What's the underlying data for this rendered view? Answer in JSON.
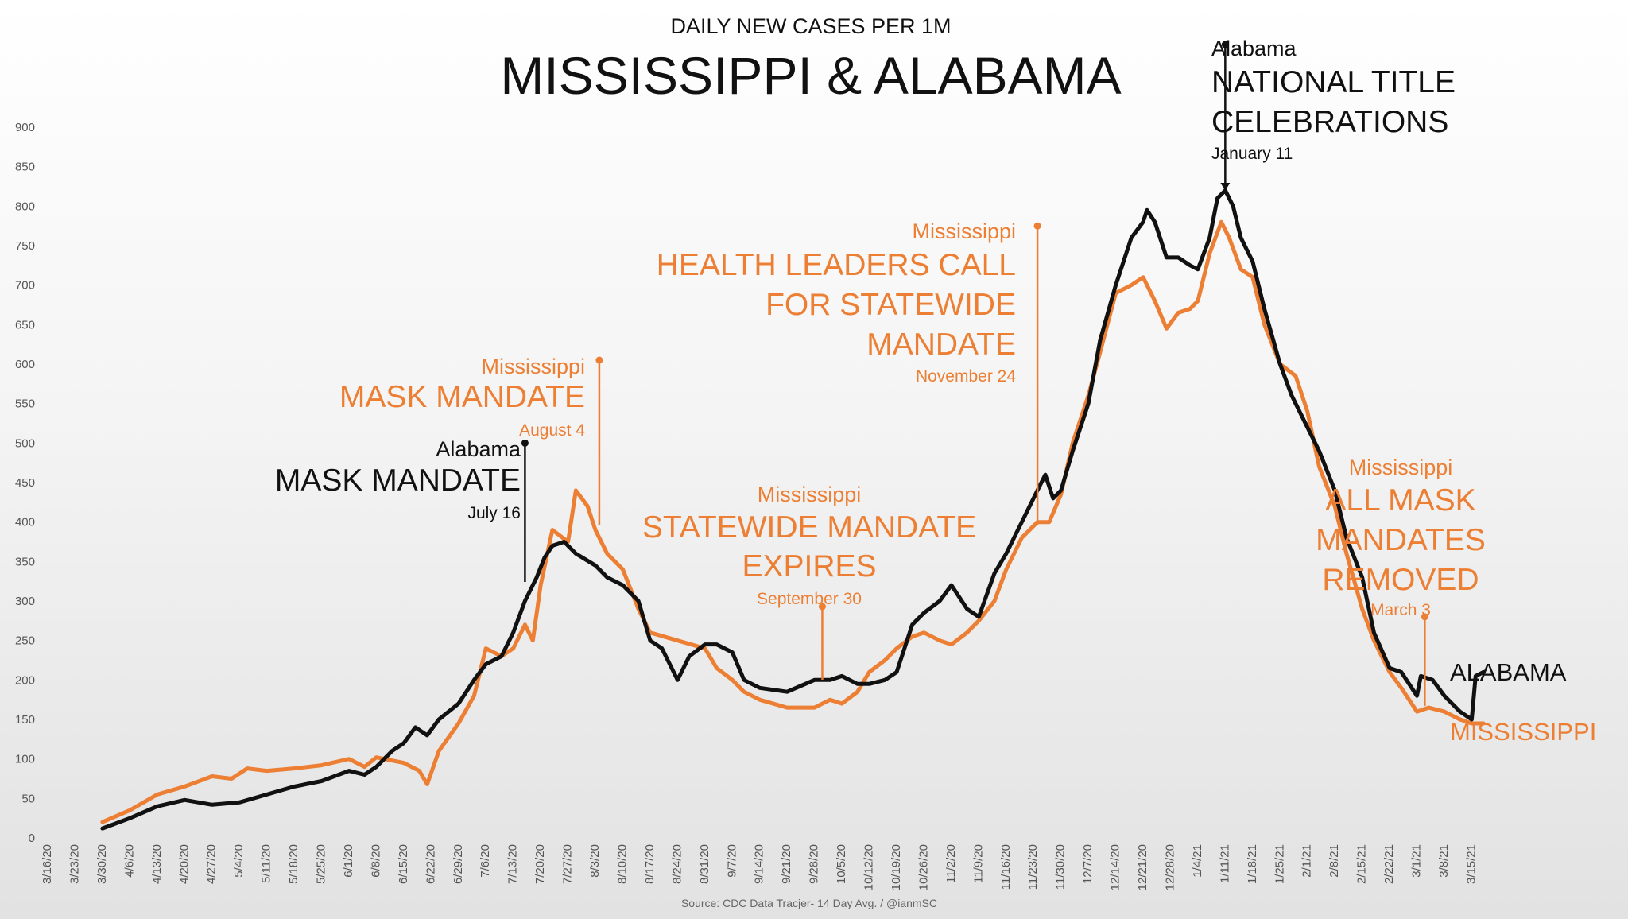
{
  "colors": {
    "alabama": "#111111",
    "mississippi": "#ec7f33",
    "axis": "#555555",
    "source": "#666666"
  },
  "chart_data": {
    "type": "line",
    "subtitle": "DAILY NEW CASES PER 1M",
    "title": "MISSISSIPPI & ALABAMA",
    "source": "Source: CDC Data Tracjer- 14 Day Avg. / @ianmSC",
    "ylim": [
      0,
      900
    ],
    "xlim": [
      "3/16/20",
      "3/24/21"
    ],
    "y_ticks": [
      0,
      50,
      100,
      150,
      200,
      250,
      300,
      350,
      400,
      450,
      500,
      550,
      600,
      650,
      700,
      750,
      800,
      850,
      900
    ],
    "x_ticks": [
      "3/16/20",
      "3/23/20",
      "3/30/20",
      "4/6/20",
      "4/13/20",
      "4/20/20",
      "4/27/20",
      "5/4/20",
      "5/11/20",
      "5/18/20",
      "5/25/20",
      "6/1/20",
      "6/8/20",
      "6/15/20",
      "6/22/20",
      "6/29/20",
      "7/6/20",
      "7/13/20",
      "7/20/20",
      "7/27/20",
      "8/3/20",
      "8/10/20",
      "8/17/20",
      "8/24/20",
      "8/31/20",
      "9/7/20",
      "9/14/20",
      "9/21/20",
      "9/28/20",
      "10/5/20",
      "10/12/20",
      "10/19/20",
      "10/26/20",
      "11/2/20",
      "11/9/20",
      "11/16/20",
      "11/23/20",
      "11/30/20",
      "12/7/20",
      "12/14/20",
      "12/21/20",
      "12/28/20",
      "1/4/21",
      "1/11/21",
      "1/18/21",
      "1/25/21",
      "2/1/21",
      "2/8/21",
      "2/15/21",
      "2/22/21",
      "3/1/21",
      "3/8/21",
      "3/15/21"
    ],
    "grid": false,
    "series": [
      {
        "name": "MISSISSIPPI",
        "points": [
          [
            "3/30/20",
            20
          ],
          [
            "4/6/20",
            35
          ],
          [
            "4/13/20",
            55
          ],
          [
            "4/20/20",
            65
          ],
          [
            "4/27/20",
            78
          ],
          [
            "5/2/20",
            75
          ],
          [
            "5/6/20",
            88
          ],
          [
            "5/11/20",
            85
          ],
          [
            "5/18/20",
            88
          ],
          [
            "5/25/20",
            92
          ],
          [
            "6/1/20",
            100
          ],
          [
            "6/5/20",
            90
          ],
          [
            "6/8/20",
            102
          ],
          [
            "6/15/20",
            95
          ],
          [
            "6/19/20",
            85
          ],
          [
            "6/21/20",
            68
          ],
          [
            "6/24/20",
            110
          ],
          [
            "6/29/20",
            145
          ],
          [
            "7/3/20",
            180
          ],
          [
            "7/6/20",
            240
          ],
          [
            "7/10/20",
            230
          ],
          [
            "7/13/20",
            240
          ],
          [
            "7/16/20",
            270
          ],
          [
            "7/18/20",
            250
          ],
          [
            "7/20/20",
            320
          ],
          [
            "7/23/20",
            390
          ],
          [
            "7/27/20",
            375
          ],
          [
            "7/29/20",
            440
          ],
          [
            "8/1/20",
            420
          ],
          [
            "8/3/20",
            390
          ],
          [
            "8/6/20",
            360
          ],
          [
            "8/10/20",
            340
          ],
          [
            "8/14/20",
            290
          ],
          [
            "8/17/20",
            260
          ],
          [
            "8/24/20",
            250
          ],
          [
            "8/31/20",
            240
          ],
          [
            "9/3/20",
            215
          ],
          [
            "9/7/20",
            200
          ],
          [
            "9/10/20",
            185
          ],
          [
            "9/14/20",
            175
          ],
          [
            "9/21/20",
            165
          ],
          [
            "9/28/20",
            165
          ],
          [
            "10/2/20",
            175
          ],
          [
            "10/5/20",
            170
          ],
          [
            "10/9/20",
            185
          ],
          [
            "10/12/20",
            210
          ],
          [
            "10/16/20",
            225
          ],
          [
            "10/19/20",
            240
          ],
          [
            "10/23/20",
            255
          ],
          [
            "10/26/20",
            260
          ],
          [
            "10/30/20",
            250
          ],
          [
            "11/2/20",
            245
          ],
          [
            "11/6/20",
            260
          ],
          [
            "11/9/20",
            275
          ],
          [
            "11/13/20",
            300
          ],
          [
            "11/16/20",
            340
          ],
          [
            "11/20/20",
            380
          ],
          [
            "11/24/20",
            400
          ],
          [
            "11/27/20",
            400
          ],
          [
            "11/30/20",
            435
          ],
          [
            "12/3/20",
            500
          ],
          [
            "12/7/20",
            560
          ],
          [
            "12/10/20",
            615
          ],
          [
            "12/14/20",
            690
          ],
          [
            "12/18/20",
            700
          ],
          [
            "12/21/20",
            710
          ],
          [
            "12/24/20",
            680
          ],
          [
            "12/27/20",
            645
          ],
          [
            "12/30/20",
            665
          ],
          [
            "1/2/21",
            670
          ],
          [
            "1/4/21",
            680
          ],
          [
            "1/7/21",
            740
          ],
          [
            "1/10/21",
            780
          ],
          [
            "1/12/21",
            760
          ],
          [
            "1/15/21",
            720
          ],
          [
            "1/18/21",
            710
          ],
          [
            "1/21/21",
            650
          ],
          [
            "1/25/21",
            600
          ],
          [
            "1/29/21",
            585
          ],
          [
            "2/1/21",
            540
          ],
          [
            "2/4/21",
            470
          ],
          [
            "2/8/21",
            420
          ],
          [
            "2/11/21",
            360
          ],
          [
            "2/15/21",
            290
          ],
          [
            "2/18/21",
            250
          ],
          [
            "2/22/21",
            210
          ],
          [
            "2/25/21",
            190
          ],
          [
            "3/1/21",
            160
          ],
          [
            "3/4/21",
            165
          ],
          [
            "3/8/21",
            160
          ],
          [
            "3/12/21",
            150
          ],
          [
            "3/15/21",
            145
          ],
          [
            "3/18/21",
            145
          ]
        ]
      },
      {
        "name": "ALABAMA",
        "points": [
          [
            "3/30/20",
            12
          ],
          [
            "4/6/20",
            25
          ],
          [
            "4/13/20",
            40
          ],
          [
            "4/20/20",
            48
          ],
          [
            "4/27/20",
            42
          ],
          [
            "5/4/20",
            45
          ],
          [
            "5/11/20",
            55
          ],
          [
            "5/18/20",
            65
          ],
          [
            "5/25/20",
            72
          ],
          [
            "6/1/20",
            85
          ],
          [
            "6/5/20",
            80
          ],
          [
            "6/8/20",
            90
          ],
          [
            "6/12/20",
            110
          ],
          [
            "6/15/20",
            120
          ],
          [
            "6/18/20",
            140
          ],
          [
            "6/21/20",
            130
          ],
          [
            "6/24/20",
            150
          ],
          [
            "6/29/20",
            170
          ],
          [
            "7/3/20",
            200
          ],
          [
            "7/6/20",
            220
          ],
          [
            "7/10/20",
            230
          ],
          [
            "7/13/20",
            260
          ],
          [
            "7/16/20",
            300
          ],
          [
            "7/19/20",
            330
          ],
          [
            "7/21/20",
            355
          ],
          [
            "7/23/20",
            370
          ],
          [
            "7/26/20",
            375
          ],
          [
            "7/29/20",
            360
          ],
          [
            "8/3/20",
            345
          ],
          [
            "8/6/20",
            330
          ],
          [
            "8/10/20",
            320
          ],
          [
            "8/14/20",
            300
          ],
          [
            "8/17/20",
            250
          ],
          [
            "8/20/20",
            240
          ],
          [
            "8/24/20",
            200
          ],
          [
            "8/27/20",
            230
          ],
          [
            "8/31/20",
            245
          ],
          [
            "9/3/20",
            245
          ],
          [
            "9/7/20",
            235
          ],
          [
            "9/10/20",
            200
          ],
          [
            "9/14/20",
            190
          ],
          [
            "9/21/20",
            185
          ],
          [
            "9/28/20",
            200
          ],
          [
            "10/2/20",
            200
          ],
          [
            "10/5/20",
            205
          ],
          [
            "10/9/20",
            195
          ],
          [
            "10/12/20",
            195
          ],
          [
            "10/16/20",
            200
          ],
          [
            "10/19/20",
            210
          ],
          [
            "10/23/20",
            270
          ],
          [
            "10/26/20",
            285
          ],
          [
            "10/30/20",
            300
          ],
          [
            "11/2/20",
            320
          ],
          [
            "11/6/20",
            290
          ],
          [
            "11/9/20",
            280
          ],
          [
            "11/13/20",
            335
          ],
          [
            "11/16/20",
            360
          ],
          [
            "11/20/20",
            400
          ],
          [
            "11/24/20",
            440
          ],
          [
            "11/26/20",
            460
          ],
          [
            "11/28/20",
            430
          ],
          [
            "11/30/20",
            440
          ],
          [
            "12/3/20",
            490
          ],
          [
            "12/7/20",
            550
          ],
          [
            "12/10/20",
            630
          ],
          [
            "12/14/20",
            700
          ],
          [
            "12/18/20",
            760
          ],
          [
            "12/21/20",
            780
          ],
          [
            "12/22/20",
            795
          ],
          [
            "12/24/20",
            780
          ],
          [
            "12/27/20",
            735
          ],
          [
            "12/30/20",
            735
          ],
          [
            "1/2/21",
            725
          ],
          [
            "1/4/21",
            720
          ],
          [
            "1/7/21",
            760
          ],
          [
            "1/9/21",
            810
          ],
          [
            "1/11/21",
            820
          ],
          [
            "1/13/21",
            800
          ],
          [
            "1/15/21",
            760
          ],
          [
            "1/18/21",
            730
          ],
          [
            "1/21/21",
            670
          ],
          [
            "1/25/21",
            600
          ],
          [
            "1/28/21",
            560
          ],
          [
            "2/1/21",
            520
          ],
          [
            "2/4/21",
            490
          ],
          [
            "2/8/21",
            440
          ],
          [
            "2/11/21",
            380
          ],
          [
            "2/15/21",
            330
          ],
          [
            "2/18/21",
            260
          ],
          [
            "2/22/21",
            215
          ],
          [
            "2/25/21",
            210
          ],
          [
            "3/1/21",
            180
          ],
          [
            "3/2/21",
            205
          ],
          [
            "3/5/21",
            200
          ],
          [
            "3/8/21",
            180
          ],
          [
            "3/12/21",
            160
          ],
          [
            "3/15/21",
            150
          ],
          [
            "3/16/21",
            205
          ],
          [
            "3/18/21",
            210
          ]
        ]
      }
    ],
    "series_labels": {
      "alabama": "ALABAMA",
      "mississippi": "MISSISSIPPI"
    },
    "annotations": [
      {
        "key": "ms_mask",
        "state": "Mississippi",
        "event": [
          "MASK MANDATE"
        ],
        "date_text": "August 4",
        "date": "8/4/20",
        "value": 605,
        "color": "mississippi"
      },
      {
        "key": "al_mask",
        "state": "Alabama",
        "event": [
          "MASK MANDATE"
        ],
        "date_text": "July 16",
        "date": "7/16/20",
        "value": 500,
        "color": "alabama"
      },
      {
        "key": "ms_expire",
        "state": "Mississippi",
        "event": [
          "STATEWIDE MANDATE",
          "EXPIRES"
        ],
        "date_text": "September 30",
        "date": "9/30/20",
        "value": 293,
        "color": "mississippi"
      },
      {
        "key": "ms_health",
        "state": "Mississippi",
        "event": [
          "HEALTH LEADERS CALL",
          "FOR STATEWIDE",
          "MANDATE"
        ],
        "date_text": "November 24",
        "date": "11/24/20",
        "value": 775,
        "color": "mississippi"
      },
      {
        "key": "al_title",
        "state": "Alabama",
        "event": [
          "NATIONAL TITLE",
          "CELEBRATIONS"
        ],
        "date_text": "January 11",
        "date": "1/11/21",
        "value": 1000,
        "color": "alabama"
      },
      {
        "key": "ms_remove",
        "state": "Mississippi",
        "event": [
          "ALL MASK",
          "MANDATES",
          "REMOVED"
        ],
        "date_text": "March 3",
        "date": "3/3/21",
        "value": 280,
        "color": "mississippi"
      }
    ]
  }
}
